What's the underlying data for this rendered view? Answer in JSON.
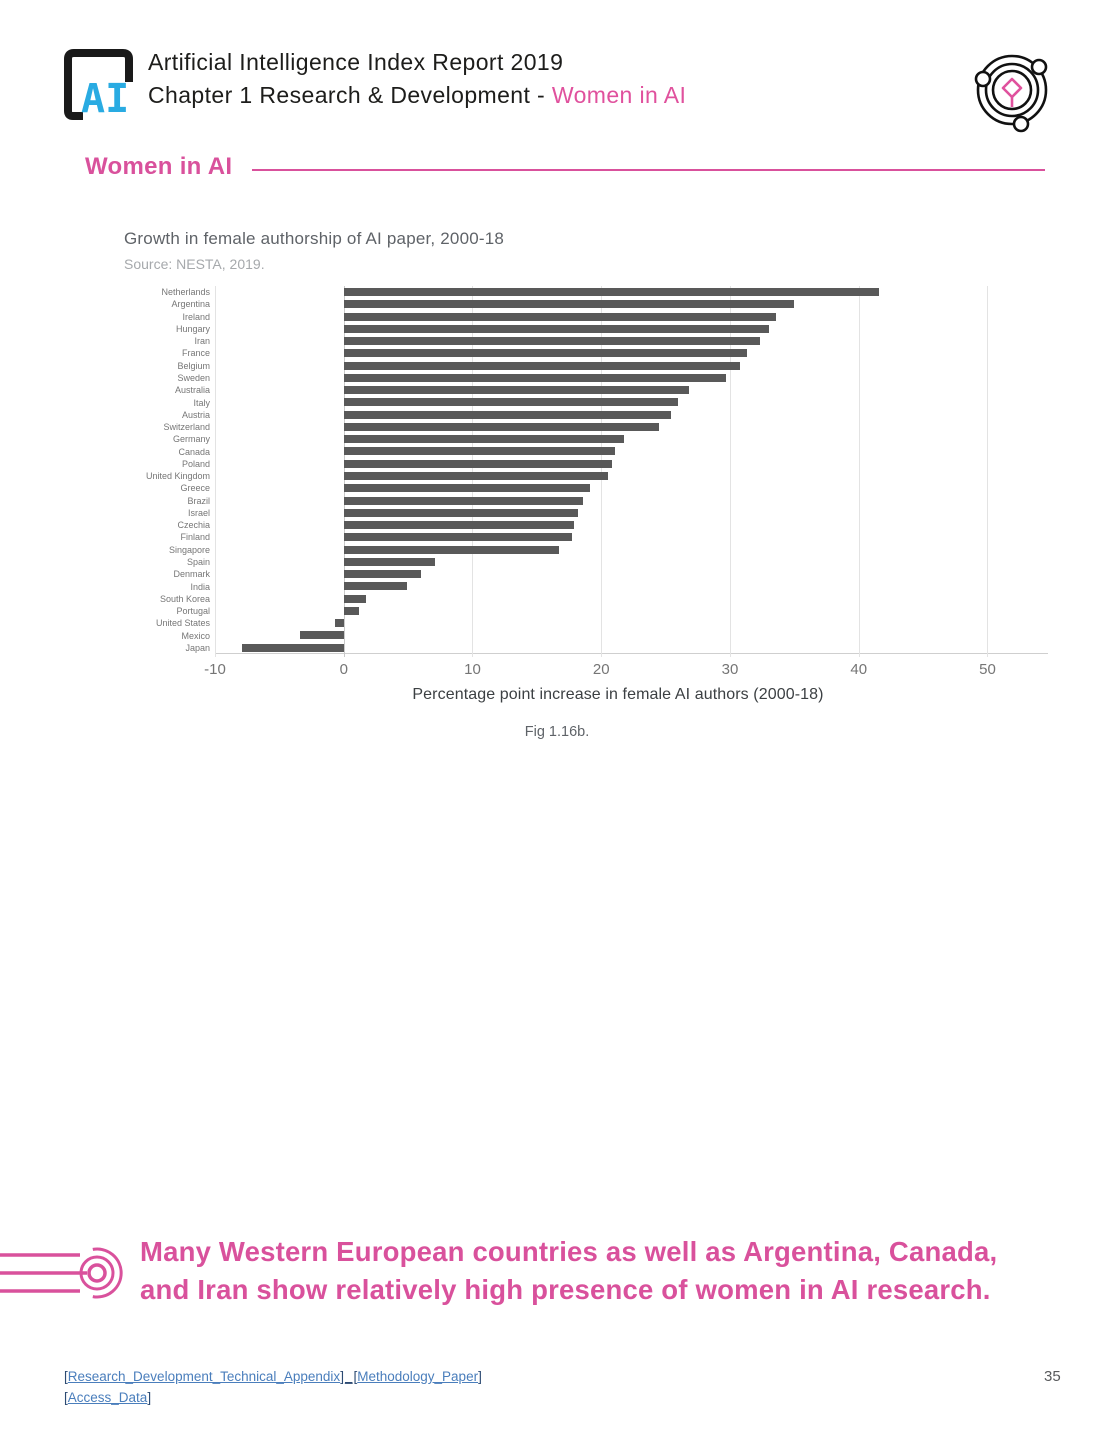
{
  "header": {
    "logo_text": "AI",
    "title_line1": "Artificial Intelligence Index Report 2019",
    "title_line2_prefix": "Chapter 1 Research & Development - ",
    "title_line2_highlight": "Women in AI"
  },
  "section": {
    "title": "Women in AI"
  },
  "chart": {
    "title": "Growth in female authorship of AI paper, 2000-18",
    "source": "Source: NESTA, 2019.",
    "xlabel": "Percentage point increase in female AI authors (2000-18)",
    "caption": "Fig 1.16b."
  },
  "chart_data": {
    "type": "bar",
    "orientation": "horizontal",
    "title": "Growth in female authorship of AI paper, 2000-18",
    "xlabel": "Percentage point increase in female AI authors (2000-18)",
    "ylabel": "",
    "categories": [
      "Netherlands",
      "Argentina",
      "Ireland",
      "Hungary",
      "Iran",
      "France",
      "Belgium",
      "Sweden",
      "Australia",
      "Italy",
      "Austria",
      "Switzerland",
      "Germany",
      "Canada",
      "Poland",
      "United Kingdom",
      "Greece",
      "Brazil",
      "Israel",
      "Czechia",
      "Finland",
      "Singapore",
      "Spain",
      "Denmark",
      "India",
      "South Korea",
      "Portugal",
      "United States",
      "Mexico",
      "Japan"
    ],
    "values": [
      41.6,
      35.0,
      33.6,
      33.0,
      32.3,
      31.3,
      30.8,
      29.7,
      26.8,
      26.0,
      25.4,
      24.5,
      21.8,
      21.1,
      20.8,
      20.5,
      19.1,
      18.6,
      18.2,
      17.9,
      17.7,
      16.7,
      7.1,
      6.0,
      4.9,
      1.7,
      1.2,
      -0.7,
      -3.4,
      -7.9
    ],
    "xlim": [
      -10,
      54.7
    ],
    "xticks": [
      -10,
      0,
      10,
      20,
      30,
      40,
      50
    ],
    "bar_color": "#595959",
    "grid": true,
    "legend": false
  },
  "callout": {
    "text_line1": "Many Western European countries as well as Argentina, Canada,",
    "text_line2": "and Iran show relatively high presence of women in AI research."
  },
  "footer": {
    "bracket_open": "[",
    "bracket_close": "]",
    "separator": "_",
    "links": [
      {
        "label": "Research_Development_Technical_Appendix"
      },
      {
        "label": "Methodology_Paper"
      },
      {
        "label": "Access_Data"
      }
    ],
    "page_number": "35"
  },
  "colors": {
    "pink": "#d9519c",
    "logo_blue": "#29abe2",
    "bar_gray": "#595959",
    "link_blue": "#4a7ebc"
  }
}
